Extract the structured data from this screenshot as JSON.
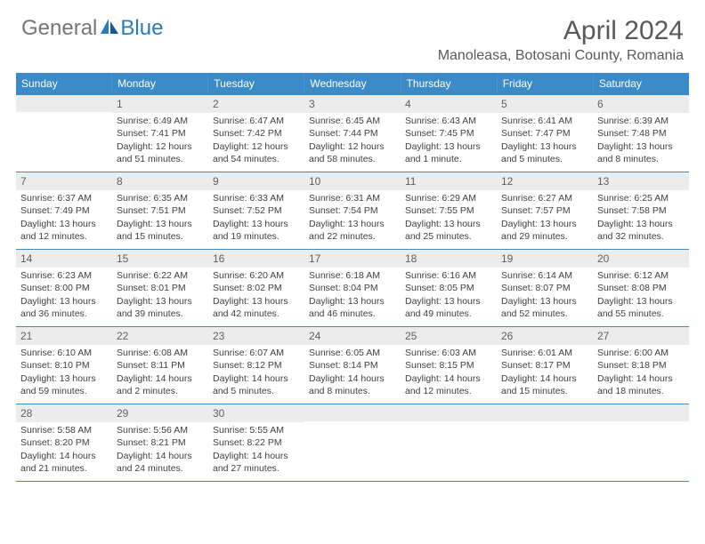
{
  "brand": {
    "part1": "General",
    "part2": "Blue"
  },
  "title": "April 2024",
  "location": "Manoleasa, Botosani County, Romania",
  "colors": {
    "header_bg": "#3b8bc9",
    "header_text": "#ffffff",
    "daynum_bg": "#ececec",
    "border": "#3b8bc9",
    "logo_gray": "#757575",
    "logo_blue": "#2b7bbf"
  },
  "day_headers": [
    "Sunday",
    "Monday",
    "Tuesday",
    "Wednesday",
    "Thursday",
    "Friday",
    "Saturday"
  ],
  "weeks": [
    [
      {
        "num": "",
        "sunrise": "",
        "sunset": "",
        "daylight": ""
      },
      {
        "num": "1",
        "sunrise": "Sunrise: 6:49 AM",
        "sunset": "Sunset: 7:41 PM",
        "daylight": "Daylight: 12 hours and 51 minutes."
      },
      {
        "num": "2",
        "sunrise": "Sunrise: 6:47 AM",
        "sunset": "Sunset: 7:42 PM",
        "daylight": "Daylight: 12 hours and 54 minutes."
      },
      {
        "num": "3",
        "sunrise": "Sunrise: 6:45 AM",
        "sunset": "Sunset: 7:44 PM",
        "daylight": "Daylight: 12 hours and 58 minutes."
      },
      {
        "num": "4",
        "sunrise": "Sunrise: 6:43 AM",
        "sunset": "Sunset: 7:45 PM",
        "daylight": "Daylight: 13 hours and 1 minute."
      },
      {
        "num": "5",
        "sunrise": "Sunrise: 6:41 AM",
        "sunset": "Sunset: 7:47 PM",
        "daylight": "Daylight: 13 hours and 5 minutes."
      },
      {
        "num": "6",
        "sunrise": "Sunrise: 6:39 AM",
        "sunset": "Sunset: 7:48 PM",
        "daylight": "Daylight: 13 hours and 8 minutes."
      }
    ],
    [
      {
        "num": "7",
        "sunrise": "Sunrise: 6:37 AM",
        "sunset": "Sunset: 7:49 PM",
        "daylight": "Daylight: 13 hours and 12 minutes."
      },
      {
        "num": "8",
        "sunrise": "Sunrise: 6:35 AM",
        "sunset": "Sunset: 7:51 PM",
        "daylight": "Daylight: 13 hours and 15 minutes."
      },
      {
        "num": "9",
        "sunrise": "Sunrise: 6:33 AM",
        "sunset": "Sunset: 7:52 PM",
        "daylight": "Daylight: 13 hours and 19 minutes."
      },
      {
        "num": "10",
        "sunrise": "Sunrise: 6:31 AM",
        "sunset": "Sunset: 7:54 PM",
        "daylight": "Daylight: 13 hours and 22 minutes."
      },
      {
        "num": "11",
        "sunrise": "Sunrise: 6:29 AM",
        "sunset": "Sunset: 7:55 PM",
        "daylight": "Daylight: 13 hours and 25 minutes."
      },
      {
        "num": "12",
        "sunrise": "Sunrise: 6:27 AM",
        "sunset": "Sunset: 7:57 PM",
        "daylight": "Daylight: 13 hours and 29 minutes."
      },
      {
        "num": "13",
        "sunrise": "Sunrise: 6:25 AM",
        "sunset": "Sunset: 7:58 PM",
        "daylight": "Daylight: 13 hours and 32 minutes."
      }
    ],
    [
      {
        "num": "14",
        "sunrise": "Sunrise: 6:23 AM",
        "sunset": "Sunset: 8:00 PM",
        "daylight": "Daylight: 13 hours and 36 minutes."
      },
      {
        "num": "15",
        "sunrise": "Sunrise: 6:22 AM",
        "sunset": "Sunset: 8:01 PM",
        "daylight": "Daylight: 13 hours and 39 minutes."
      },
      {
        "num": "16",
        "sunrise": "Sunrise: 6:20 AM",
        "sunset": "Sunset: 8:02 PM",
        "daylight": "Daylight: 13 hours and 42 minutes."
      },
      {
        "num": "17",
        "sunrise": "Sunrise: 6:18 AM",
        "sunset": "Sunset: 8:04 PM",
        "daylight": "Daylight: 13 hours and 46 minutes."
      },
      {
        "num": "18",
        "sunrise": "Sunrise: 6:16 AM",
        "sunset": "Sunset: 8:05 PM",
        "daylight": "Daylight: 13 hours and 49 minutes."
      },
      {
        "num": "19",
        "sunrise": "Sunrise: 6:14 AM",
        "sunset": "Sunset: 8:07 PM",
        "daylight": "Daylight: 13 hours and 52 minutes."
      },
      {
        "num": "20",
        "sunrise": "Sunrise: 6:12 AM",
        "sunset": "Sunset: 8:08 PM",
        "daylight": "Daylight: 13 hours and 55 minutes."
      }
    ],
    [
      {
        "num": "21",
        "sunrise": "Sunrise: 6:10 AM",
        "sunset": "Sunset: 8:10 PM",
        "daylight": "Daylight: 13 hours and 59 minutes."
      },
      {
        "num": "22",
        "sunrise": "Sunrise: 6:08 AM",
        "sunset": "Sunset: 8:11 PM",
        "daylight": "Daylight: 14 hours and 2 minutes."
      },
      {
        "num": "23",
        "sunrise": "Sunrise: 6:07 AM",
        "sunset": "Sunset: 8:12 PM",
        "daylight": "Daylight: 14 hours and 5 minutes."
      },
      {
        "num": "24",
        "sunrise": "Sunrise: 6:05 AM",
        "sunset": "Sunset: 8:14 PM",
        "daylight": "Daylight: 14 hours and 8 minutes."
      },
      {
        "num": "25",
        "sunrise": "Sunrise: 6:03 AM",
        "sunset": "Sunset: 8:15 PM",
        "daylight": "Daylight: 14 hours and 12 minutes."
      },
      {
        "num": "26",
        "sunrise": "Sunrise: 6:01 AM",
        "sunset": "Sunset: 8:17 PM",
        "daylight": "Daylight: 14 hours and 15 minutes."
      },
      {
        "num": "27",
        "sunrise": "Sunrise: 6:00 AM",
        "sunset": "Sunset: 8:18 PM",
        "daylight": "Daylight: 14 hours and 18 minutes."
      }
    ],
    [
      {
        "num": "28",
        "sunrise": "Sunrise: 5:58 AM",
        "sunset": "Sunset: 8:20 PM",
        "daylight": "Daylight: 14 hours and 21 minutes."
      },
      {
        "num": "29",
        "sunrise": "Sunrise: 5:56 AM",
        "sunset": "Sunset: 8:21 PM",
        "daylight": "Daylight: 14 hours and 24 minutes."
      },
      {
        "num": "30",
        "sunrise": "Sunrise: 5:55 AM",
        "sunset": "Sunset: 8:22 PM",
        "daylight": "Daylight: 14 hours and 27 minutes."
      },
      {
        "num": "",
        "sunrise": "",
        "sunset": "",
        "daylight": ""
      },
      {
        "num": "",
        "sunrise": "",
        "sunset": "",
        "daylight": ""
      },
      {
        "num": "",
        "sunrise": "",
        "sunset": "",
        "daylight": ""
      },
      {
        "num": "",
        "sunrise": "",
        "sunset": "",
        "daylight": ""
      }
    ]
  ]
}
